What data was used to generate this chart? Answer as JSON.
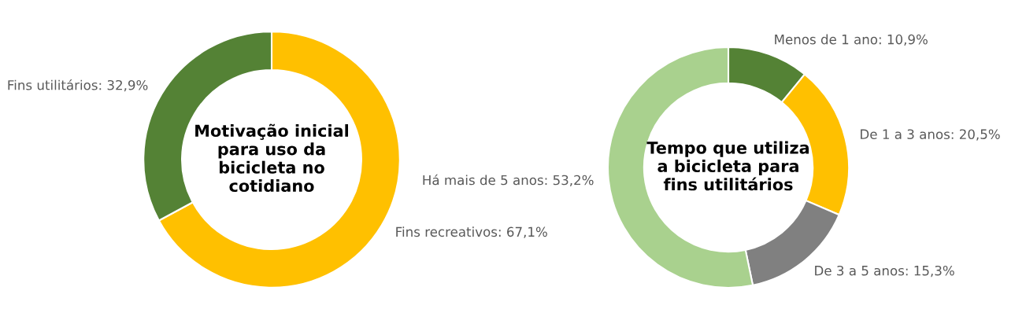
{
  "chart_data": [
    {
      "type": "donut",
      "title": "Motivação inicial\npara uso da\nbicicleta no\ncotidiano",
      "categories": [
        "Fins recreativos",
        "Fins utilitários"
      ],
      "values": [
        67.1,
        32.9
      ],
      "value_labels": [
        "67,1%",
        "32,9%"
      ],
      "colors": [
        "#ffc000",
        "#548235"
      ],
      "legend": false
    },
    {
      "type": "donut",
      "title": "Tempo que utiliza\na bicicleta para\nfins utilitários",
      "categories": [
        "Menos de 1 ano",
        "De 1 a 3 anos",
        "De 3 a 5 anos",
        "Há mais de 5 anos"
      ],
      "values": [
        10.9,
        20.5,
        15.3,
        53.2
      ],
      "value_labels": [
        "10,9%",
        "20,5%",
        "15,3%",
        "53,2%"
      ],
      "colors": [
        "#548235",
        "#ffc000",
        "#808080",
        "#a9d18e"
      ],
      "legend": false
    }
  ]
}
